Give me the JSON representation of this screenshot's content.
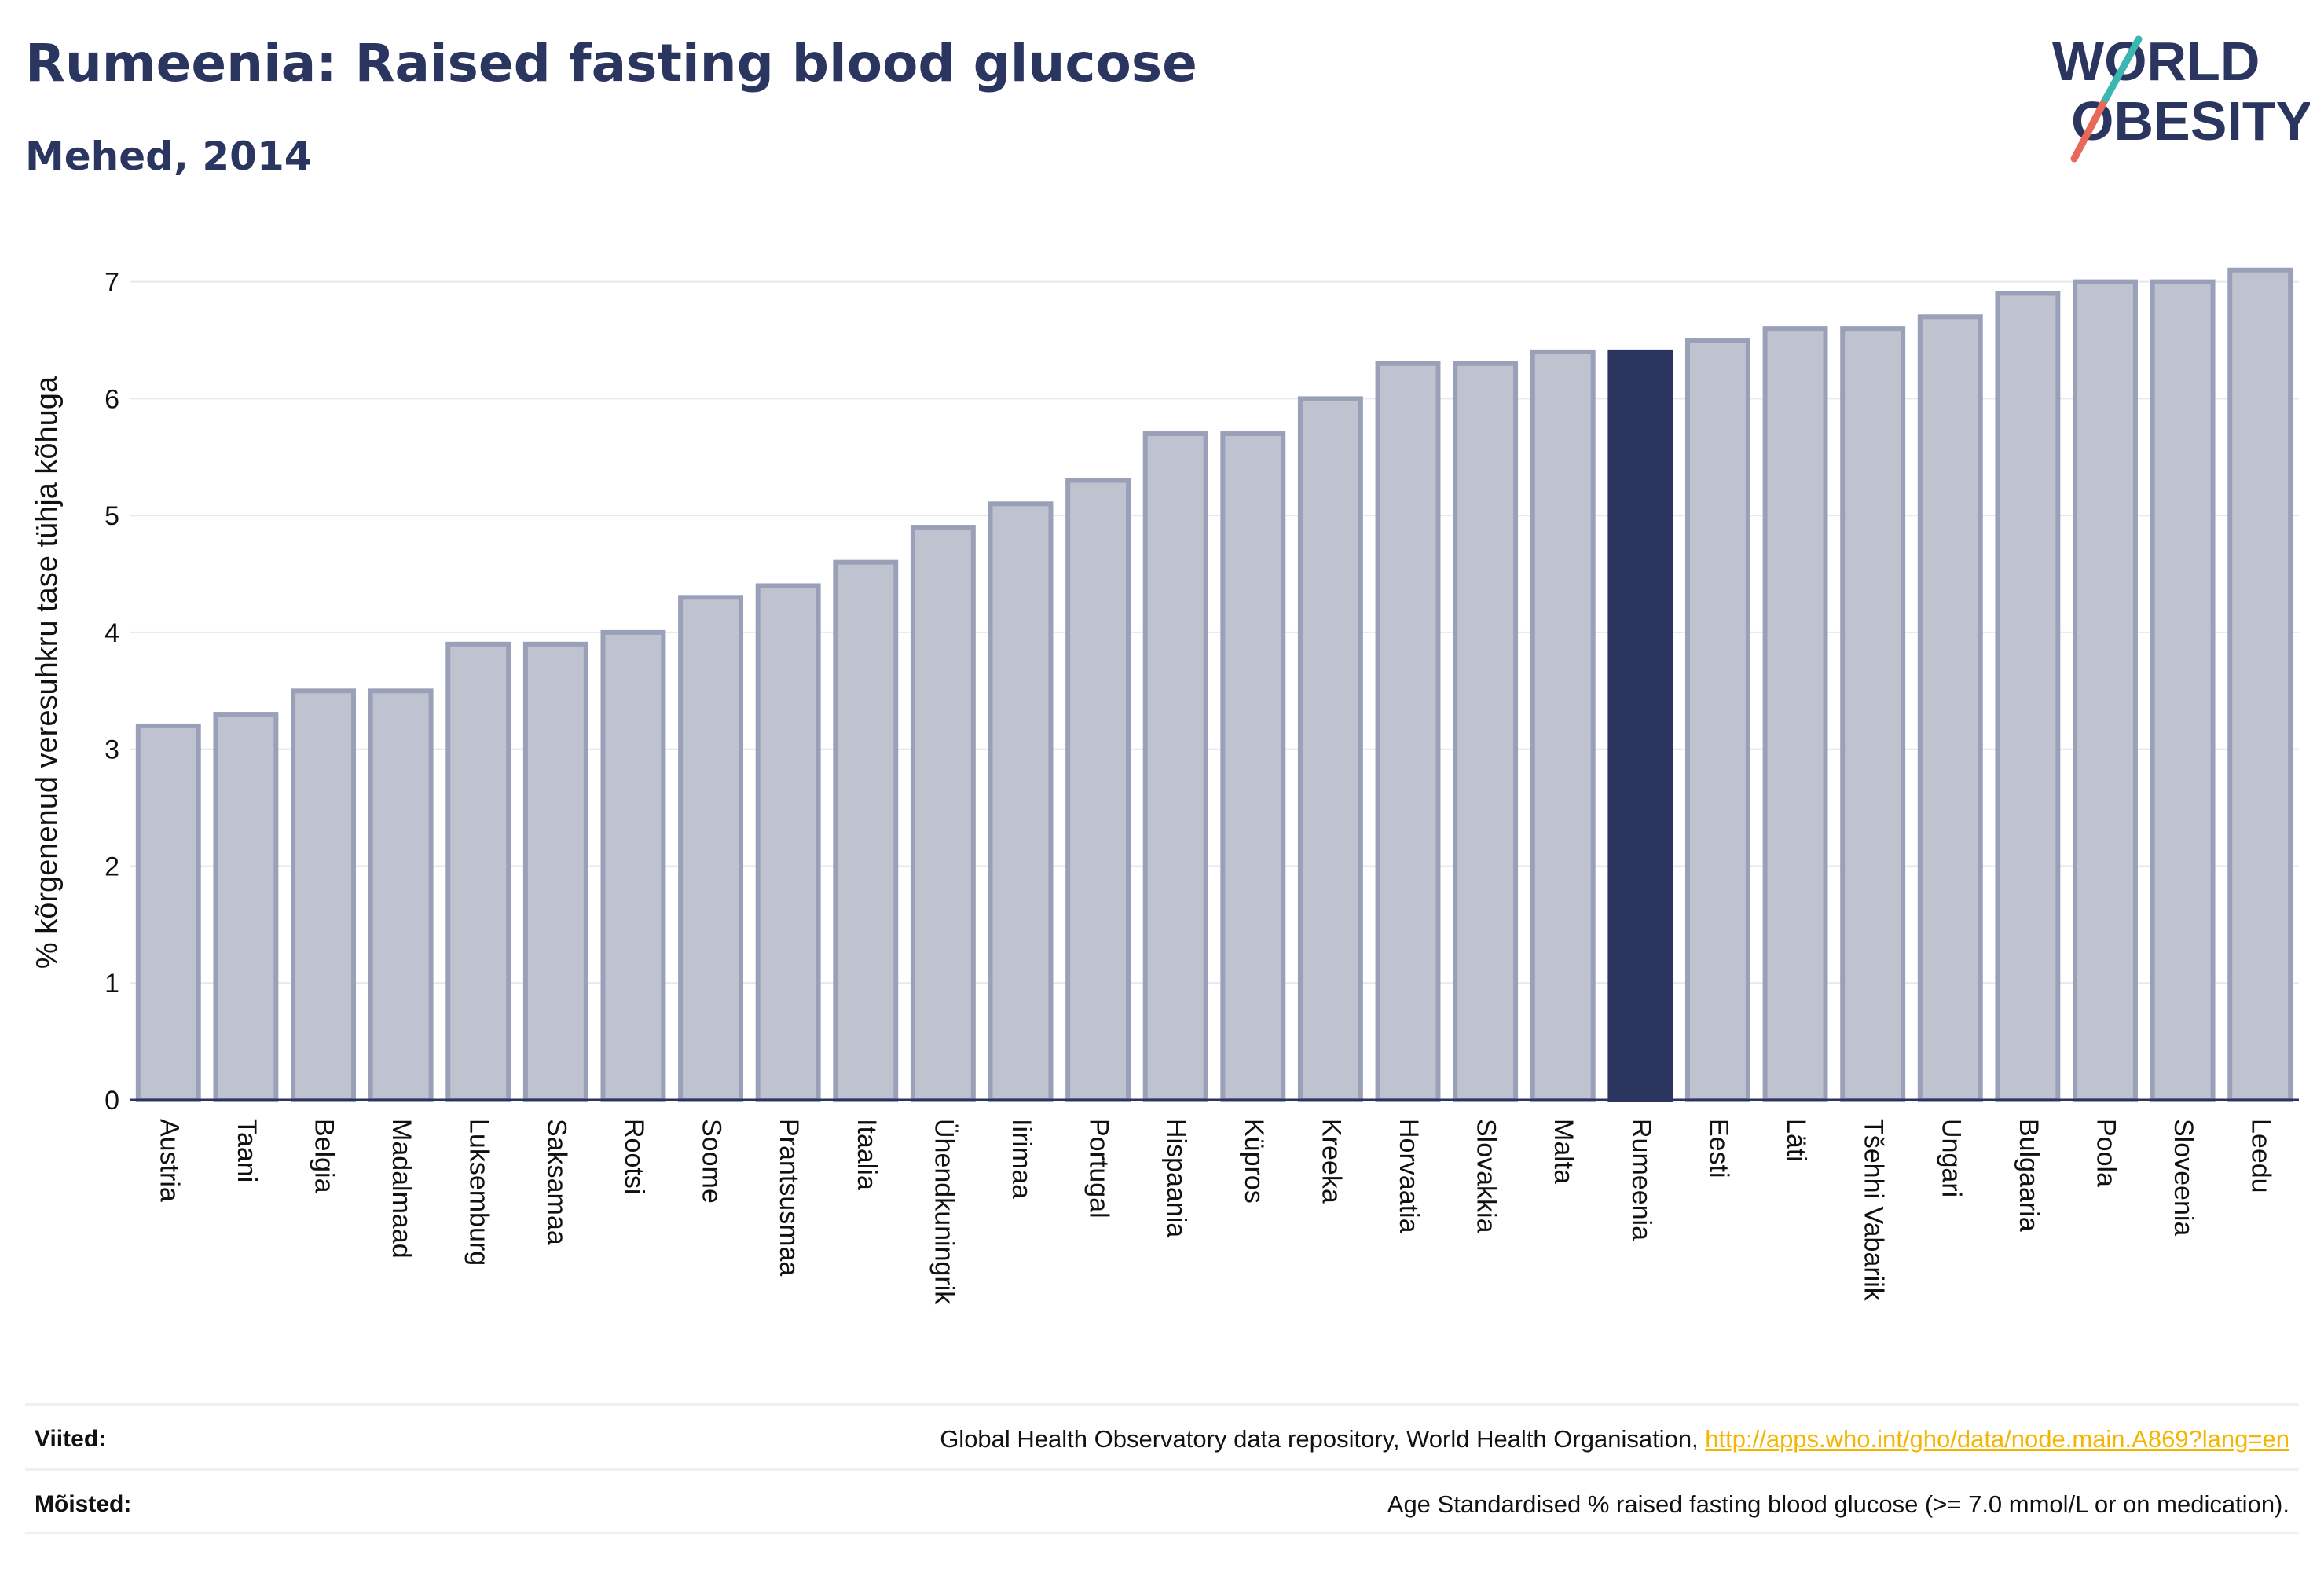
{
  "header": {
    "title": "Rumeenia: Raised fasting blood glucose",
    "subtitle": "Mehed, 2014",
    "logo_text": "WORLD OBESITY"
  },
  "colors": {
    "bar": "#bfc3d0",
    "bar_border": "#9aa0b8",
    "highlight": "#2a3560",
    "title": "#2a3560",
    "logo_accent1": "#3cb6b3",
    "logo_accent2": "#e8685a",
    "link": "#f3b500"
  },
  "chart_data": {
    "type": "bar",
    "ylabel": "% kõrgenenud veresuhkru tase tühja kõhuga",
    "ylim": [
      0,
      7.3
    ],
    "yticks": [
      0,
      1,
      2,
      3,
      4,
      5,
      6,
      7
    ],
    "grid": true,
    "highlight": "Rumeenia",
    "categories": [
      "Austria",
      "Taani",
      "Belgia",
      "Madalmaad",
      "Luksemburg",
      "Saksamaa",
      "Rootsi",
      "Soome",
      "Prantsusmaa",
      "Itaalia",
      "Ühendkuningrik",
      "Iirimaa",
      "Portugal",
      "Hispaania",
      "Küpros",
      "Kreeka",
      "Horvaatia",
      "Slovakkia",
      "Malta",
      "Rumeenia",
      "Eesti",
      "Läti",
      "Tšehhi Vabariik",
      "Ungari",
      "Bulgaaria",
      "Poola",
      "Sloveenia",
      "Leedu"
    ],
    "values": [
      3.2,
      3.3,
      3.5,
      3.5,
      3.9,
      3.9,
      4.0,
      4.3,
      4.4,
      4.6,
      4.9,
      5.1,
      5.3,
      5.7,
      5.7,
      6.0,
      6.3,
      6.3,
      6.4,
      6.4,
      6.5,
      6.6,
      6.6,
      6.7,
      6.9,
      7.0,
      7.0,
      7.1
    ]
  },
  "footer": {
    "sources_label": "Viited:",
    "sources_text": "Global Health Observatory data repository, World Health Organisation, ",
    "sources_link": "http://apps.who.int/gho/data/node.main.A869?lang=en",
    "definitions_label": "Mõisted:",
    "definitions_text": "Age Standardised % raised fasting blood glucose (>= 7.0 mmol/L or on medication)."
  }
}
